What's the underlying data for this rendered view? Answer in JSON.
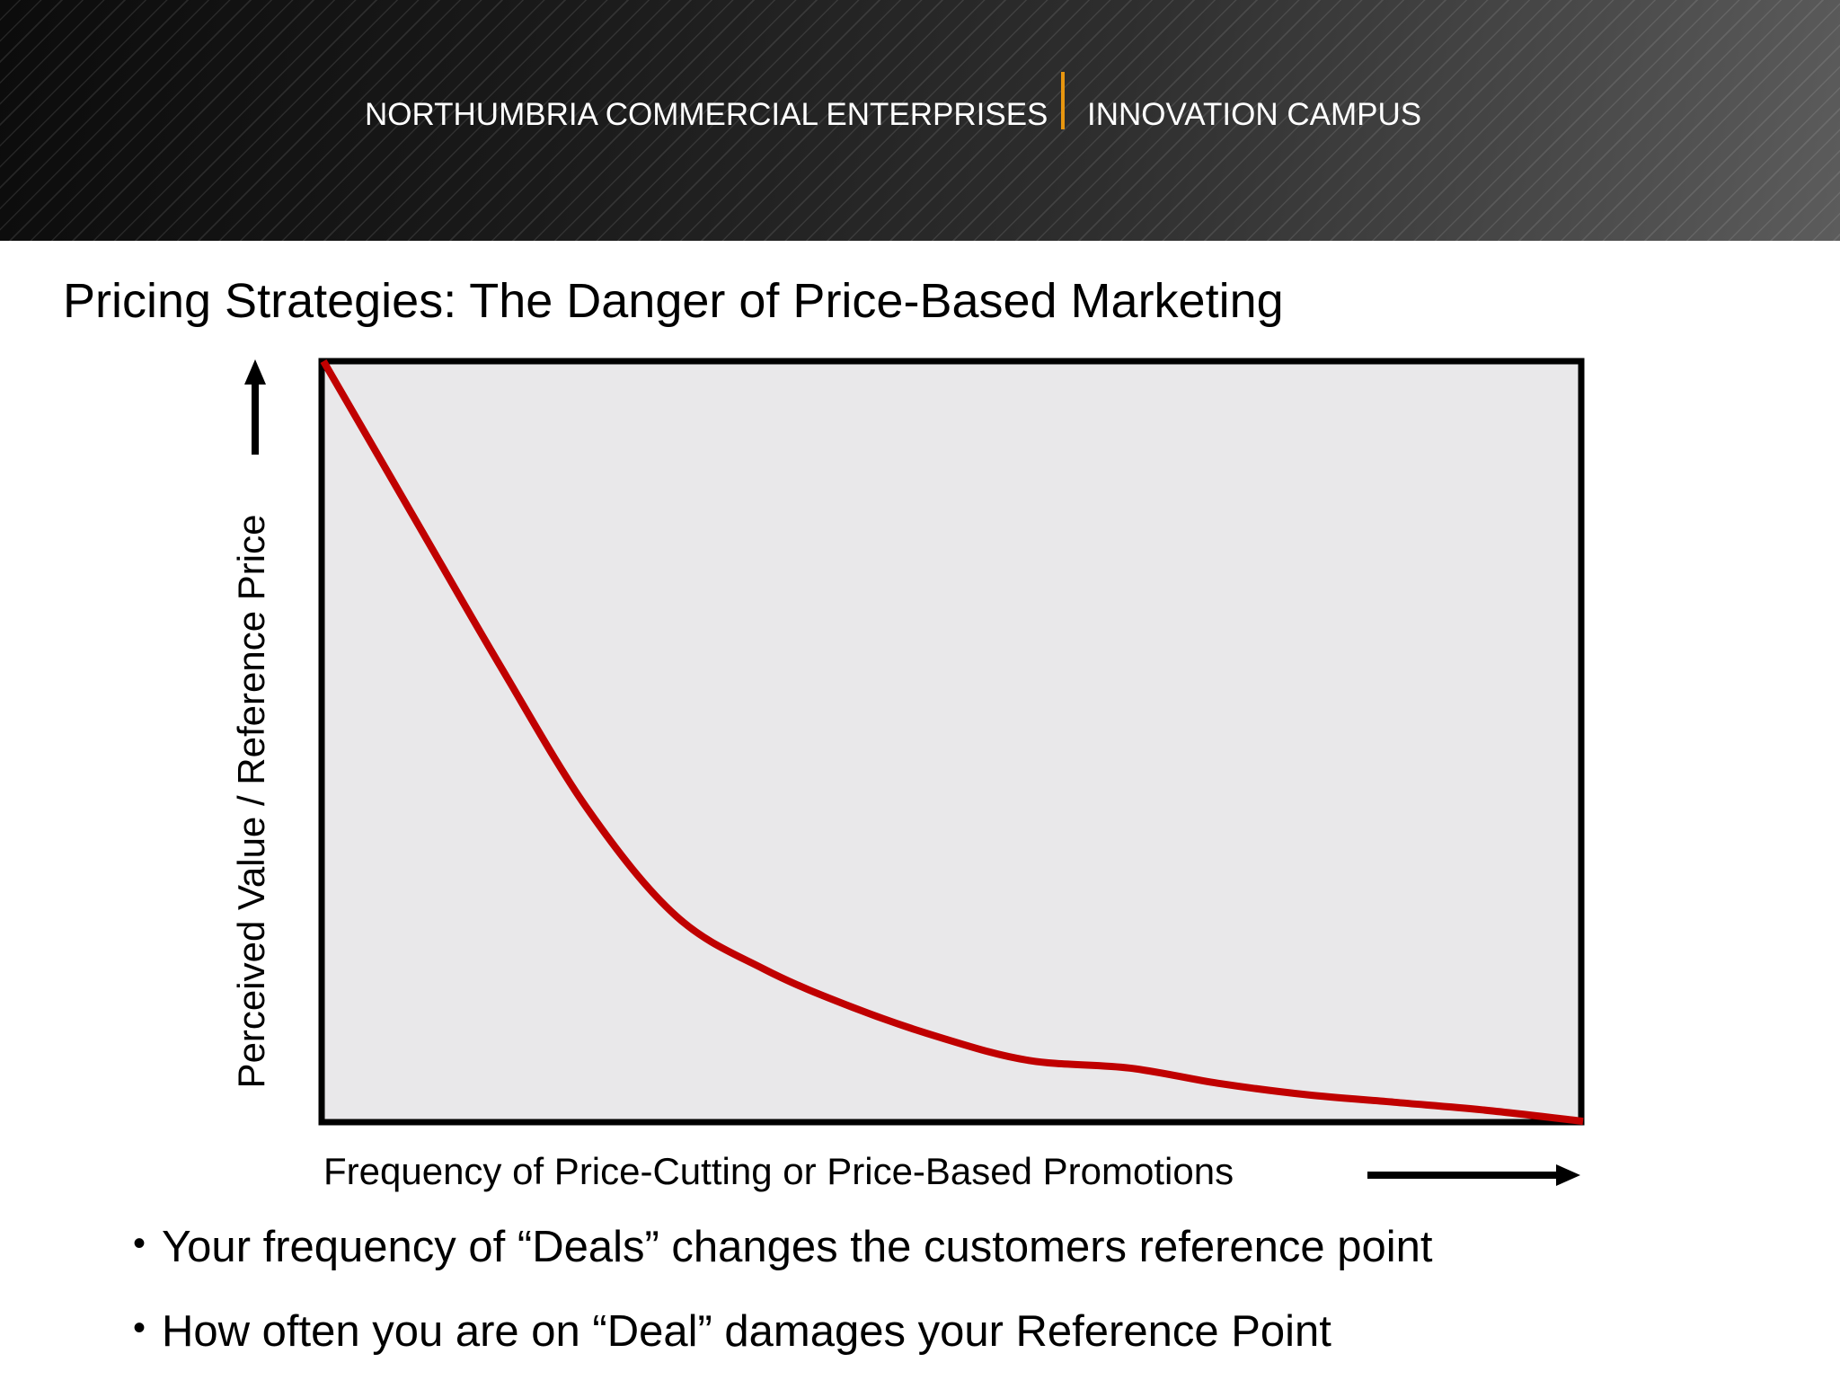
{
  "header": {
    "organization": "NORTHUMBRIA COMMERCIAL ENTERPRISES",
    "campus": "INNOVATION CAMPUS",
    "divider_color": "#e8960f"
  },
  "slide": {
    "title": "Pricing Strategies: The Danger of Price-Based Marketing",
    "bullets": [
      {
        "glyph": "•",
        "text": "Your frequency of “Deals” changes the customers reference point"
      },
      {
        "glyph": "•",
        "text": "How often you are on “Deal” damages your Reference Point"
      }
    ]
  },
  "icons": {
    "y_axis_arrow": "arrow-up-icon",
    "x_axis_arrow": "arrow-right-icon"
  },
  "chart_data": {
    "type": "line",
    "title": "Pricing Strategies: The Danger of Price-Based Marketing",
    "xlabel": "Frequency of Price-Cutting or Price-Based Promotions",
    "ylabel": "Perceived Value / Reference Price",
    "x_ticks": [],
    "y_ticks": [],
    "grid": false,
    "legend": null,
    "xlim": [
      0,
      100
    ],
    "ylim": [
      0,
      100
    ],
    "series": [
      {
        "name": "Perceived Value / Reference Price",
        "color": "#c00000",
        "x": [
          0,
          7,
          14,
          21,
          28,
          35,
          42,
          49,
          56,
          64,
          71,
          78,
          85,
          92,
          100
        ],
        "y": [
          100,
          80,
          60,
          41,
          27,
          20,
          15,
          11,
          8,
          7,
          5,
          3.5,
          2.5,
          1.5,
          0
        ]
      }
    ],
    "plot_background": "#e9e8ea"
  }
}
